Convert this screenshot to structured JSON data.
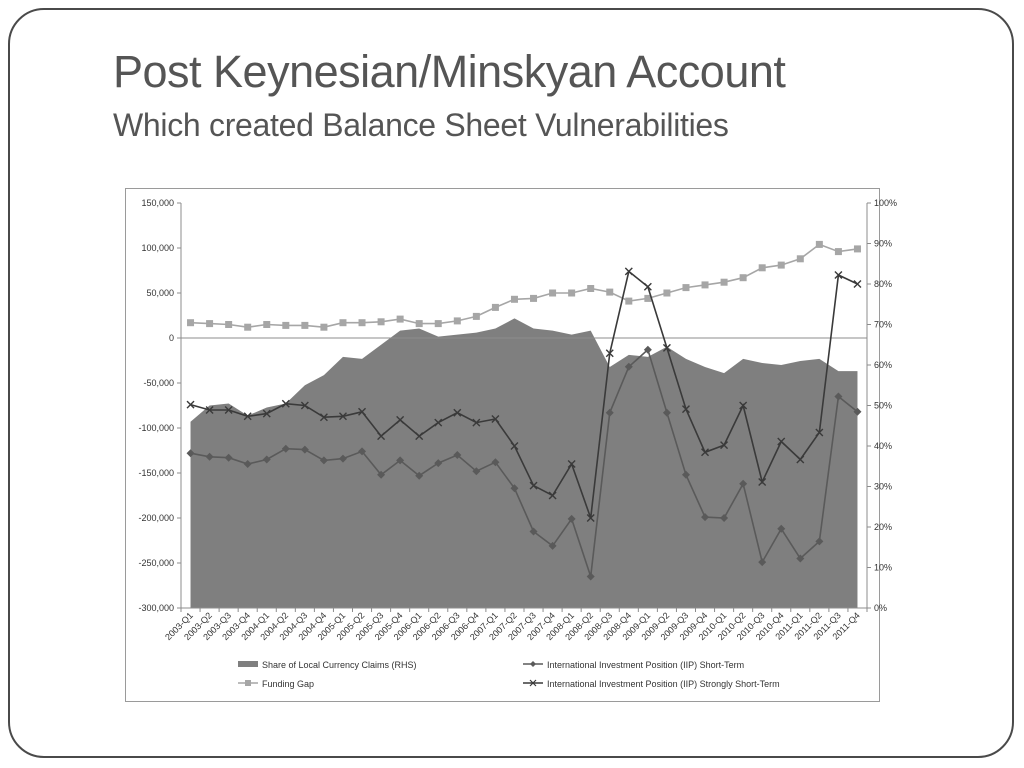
{
  "slide": {
    "title": "Post Keynesian/Minskyan Account",
    "subtitle": "Which created Balance Sheet Vulnerabilities"
  },
  "colors": {
    "area": "#7f7f7f",
    "funding_gap": "#a6a6a6",
    "iip_short": "#5a5a5a",
    "iip_strongly_short": "#3a3a3a",
    "axis": "#8c8c8c",
    "text": "#333333"
  },
  "chart_data": {
    "type": "line",
    "categories": [
      "2003-Q1",
      "2003-Q2",
      "2003-Q3",
      "2003-Q4",
      "2004-Q1",
      "2004-Q2",
      "2004-Q3",
      "2004-Q4",
      "2005-Q1",
      "2005-Q2",
      "2005-Q3",
      "2005-Q4",
      "2006-Q1",
      "2006-Q2",
      "2006-Q3",
      "2006-Q4",
      "2007-Q1",
      "2007-Q2",
      "2007-Q3",
      "2007-Q4",
      "2008-Q1",
      "2008-Q2",
      "2008-Q3",
      "2008-Q4",
      "2009-Q1",
      "2009-Q2",
      "2009-Q3",
      "2009-Q4",
      "2010-Q1",
      "2010-Q2",
      "2010-Q3",
      "2010-Q4",
      "2011-Q1",
      "2011-Q2",
      "2011-Q3",
      "2011-Q4"
    ],
    "tick_labels": [
      "2003-Q1",
      "2003-Q2",
      "2003-Q3",
      "2003-Q4",
      "2004-Q1",
      "2004-Q2",
      "2004-Q3",
      "2004-Q4",
      "2005-Q1",
      "2005-Q2",
      "2005-Q3",
      "2005-Q4",
      "2006-Q1",
      "2006-Q2",
      "2006-Q3",
      "2006-Q4",
      "2007-Q1",
      "2007-Q2",
      "2007-Q3",
      "2007-Q4",
      "2008-Q1",
      "2008-Q2",
      "2008-Q3",
      "2008-Q4",
      "2009-Q1",
      "2009-Q2",
      "2009-Q3",
      "2009-Q4",
      "2010-Q1",
      "2010-Q2",
      "2010-Q3",
      "2010-Q4",
      "2011-Q1",
      "2011-Q2",
      "2011-Q3",
      "2011-Q4"
    ],
    "ylim": [
      -300000,
      150000
    ],
    "y_ticks": [
      150000,
      100000,
      50000,
      0,
      -50000,
      -100000,
      -150000,
      -200000,
      -250000,
      -300000
    ],
    "y_tick_labels": [
      "150,000",
      "100,000",
      "50,000",
      "0",
      "-50,000",
      "-100,000",
      "-150,000",
      "-200,000",
      "-250,000",
      "-300,000"
    ],
    "y2lim": [
      0,
      100
    ],
    "y2_ticks": [
      100,
      90,
      80,
      70,
      60,
      50,
      40,
      30,
      20,
      10,
      0
    ],
    "y2_tick_labels": [
      "100%",
      "90%",
      "80%",
      "70%",
      "60%",
      "50%",
      "40%",
      "30%",
      "20%",
      "10%",
      "0%"
    ],
    "series": [
      {
        "name": "Share of Local Currency Claims (RHS)",
        "type": "area",
        "axis": "right",
        "values": [
          46,
          50,
          50.5,
          47.5,
          49.5,
          50.5,
          55,
          57.5,
          62,
          61.5,
          65,
          68.5,
          69,
          67,
          67.5,
          68,
          69,
          71.5,
          69,
          68.5,
          67.5,
          68.5,
          59.5,
          62.5,
          62,
          64.5,
          61.5,
          59.5,
          58,
          61.5,
          60.5,
          60,
          61,
          61.5,
          58.5,
          58.5
        ]
      },
      {
        "name": "Funding Gap",
        "type": "line",
        "marker": "square",
        "axis": "left",
        "values": [
          17000,
          16000,
          15000,
          12000,
          15000,
          14000,
          14000,
          12000,
          17000,
          17000,
          18000,
          21000,
          16000,
          16000,
          19000,
          24000,
          34000,
          43000,
          44000,
          50000,
          50000,
          55000,
          51000,
          41000,
          44000,
          50000,
          56000,
          59000,
          62000,
          67000,
          78000,
          81000,
          88000,
          104000,
          96000,
          99000
        ]
      },
      {
        "name": "International Investment Position (IIP) Short-Term",
        "type": "line",
        "marker": "diamond",
        "axis": "left",
        "values": [
          -128000,
          -132000,
          -133000,
          -140000,
          -135000,
          -123000,
          -124000,
          -136000,
          -134000,
          -126000,
          -152000,
          -136000,
          -153000,
          -139000,
          -130000,
          -148000,
          -138000,
          -167000,
          -215000,
          -231000,
          -201000,
          -265000,
          -83000,
          -32000,
          -13000,
          -83000,
          -152000,
          -199000,
          -200000,
          -162000,
          -249000,
          -212000,
          -245000,
          -226000,
          -65000,
          -82000
        ]
      },
      {
        "name": "International Investment Position (IIP) Strongly Short-Term",
        "type": "line",
        "marker": "x",
        "axis": "left",
        "values": [
          -74000,
          -80000,
          -80000,
          -87000,
          -84000,
          -73000,
          -75000,
          -88000,
          -87000,
          -82000,
          -109000,
          -91000,
          -109000,
          -94000,
          -83000,
          -94000,
          -90000,
          -120000,
          -164000,
          -175000,
          -140000,
          -200000,
          -17000,
          74000,
          57000,
          -11000,
          -79000,
          -127000,
          -119000,
          -75000,
          -160000,
          -115000,
          -135000,
          -105000,
          70000,
          60000
        ]
      }
    ],
    "legend_placement": "bottom",
    "grid": false
  }
}
